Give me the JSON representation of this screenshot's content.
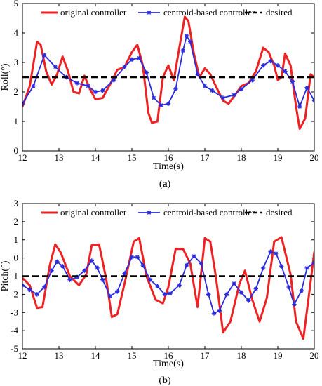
{
  "chart_data": [
    {
      "type": "line",
      "panel_label_open": "(",
      "panel_label_letter": "a",
      "panel_label_close": ")",
      "xlabel": "Time(s)",
      "ylabel": "Roll(°)",
      "xlim": [
        12,
        20
      ],
      "ylim": [
        0,
        5
      ],
      "xticks": [
        12,
        13,
        14,
        15,
        16,
        17,
        18,
        19,
        20
      ],
      "yticks": [
        0,
        1,
        2,
        3,
        4,
        5
      ],
      "legend_position": "top",
      "series": [
        {
          "name": "original controller",
          "color": "#ee2222",
          "style": "solid",
          "x": [
            12.0,
            12.2,
            12.4,
            12.5,
            12.65,
            12.8,
            12.95,
            13.1,
            13.25,
            13.4,
            13.55,
            13.7,
            13.85,
            14.0,
            14.2,
            14.4,
            14.6,
            14.8,
            15.0,
            15.15,
            15.3,
            15.45,
            15.55,
            15.7,
            15.85,
            16.0,
            16.15,
            16.3,
            16.45,
            16.55,
            16.7,
            16.85,
            17.0,
            17.15,
            17.3,
            17.5,
            17.65,
            17.8,
            18.0,
            18.2,
            18.4,
            18.6,
            18.75,
            18.9,
            19.0,
            19.1,
            19.2,
            19.35,
            19.5,
            19.6,
            19.75,
            19.9,
            20.0
          ],
          "y": [
            1.5,
            2.2,
            3.7,
            3.6,
            2.7,
            2.25,
            2.6,
            3.2,
            2.7,
            2.0,
            1.95,
            2.55,
            2.1,
            1.75,
            1.8,
            2.25,
            2.75,
            2.85,
            3.35,
            3.6,
            2.9,
            1.3,
            0.95,
            1.0,
            2.5,
            2.9,
            2.4,
            3.5,
            4.55,
            4.4,
            3.3,
            2.5,
            2.8,
            2.6,
            2.2,
            1.7,
            1.6,
            1.85,
            2.2,
            2.3,
            2.7,
            3.5,
            3.35,
            2.9,
            2.4,
            2.5,
            3.3,
            2.9,
            1.5,
            0.75,
            1.1,
            2.6,
            2.5
          ]
        },
        {
          "name": "centroid-based controller",
          "color": "#2b2bde",
          "style": "solid-star",
          "x": [
            12.0,
            12.3,
            12.6,
            12.9,
            13.2,
            13.5,
            13.8,
            14.0,
            14.2,
            14.5,
            14.8,
            15.0,
            15.2,
            15.4,
            15.6,
            15.8,
            16.0,
            16.2,
            16.4,
            16.5,
            16.6,
            16.8,
            17.0,
            17.2,
            17.5,
            17.8,
            18.0,
            18.3,
            18.6,
            18.8,
            19.0,
            19.2,
            19.4,
            19.6,
            19.8,
            20.0
          ],
          "y": [
            1.6,
            2.2,
            3.25,
            2.85,
            2.5,
            2.3,
            2.2,
            2.0,
            2.05,
            2.4,
            2.85,
            3.1,
            3.15,
            2.65,
            1.8,
            1.55,
            1.6,
            2.1,
            3.4,
            3.9,
            3.7,
            2.6,
            2.2,
            2.05,
            1.8,
            1.9,
            2.1,
            2.4,
            2.9,
            3.05,
            2.9,
            2.7,
            2.35,
            1.5,
            2.15,
            1.7
          ]
        },
        {
          "name": "desired",
          "color": "#000000",
          "style": "dashed",
          "x": [
            12,
            20
          ],
          "y": [
            2.5,
            2.5
          ]
        }
      ]
    },
    {
      "type": "line",
      "panel_label_open": "(",
      "panel_label_letter": "b",
      "panel_label_close": ")",
      "xlabel": "Time(s)",
      "ylabel": "Pitch(°)",
      "xlim": [
        12,
        20
      ],
      "ylim": [
        -5,
        3
      ],
      "xticks": [
        12,
        13,
        14,
        15,
        16,
        17,
        18,
        19,
        20
      ],
      "yticks": [
        -5,
        -4,
        -3,
        -2,
        -1,
        0,
        1,
        2,
        3
      ],
      "legend_position": "top",
      "series": [
        {
          "name": "original controller",
          "color": "#ee2222",
          "style": "solid",
          "x": [
            12.0,
            12.2,
            12.4,
            12.55,
            12.75,
            12.9,
            13.05,
            13.3,
            13.55,
            13.75,
            13.9,
            14.1,
            14.3,
            14.45,
            14.6,
            14.8,
            15.05,
            15.2,
            15.4,
            15.65,
            15.85,
            16.0,
            16.2,
            16.4,
            16.6,
            16.8,
            17.0,
            17.15,
            17.3,
            17.5,
            17.7,
            17.95,
            18.1,
            18.3,
            18.5,
            18.7,
            18.9,
            19.1,
            19.35,
            19.5,
            19.7,
            19.9,
            20.0
          ],
          "y": [
            -1.1,
            -1.5,
            -2.75,
            -2.7,
            -0.4,
            0.75,
            0.3,
            -1.0,
            -1.5,
            -0.9,
            0.7,
            0.75,
            -1.2,
            -3.25,
            -3.1,
            -1.4,
            0.9,
            1.1,
            -1.0,
            -2.3,
            -2.5,
            -1.6,
            0.5,
            0.5,
            -0.3,
            -2.7,
            1.1,
            0.9,
            -1.0,
            -4.1,
            -3.5,
            -1.4,
            -0.7,
            -2.3,
            -3.5,
            -2.2,
            0.9,
            1.15,
            -0.9,
            -3.5,
            -4.45,
            -1.3,
            0.35
          ]
        },
        {
          "name": "centroid-based controller",
          "color": "#2b2bde",
          "style": "solid-star",
          "x": [
            12.0,
            12.2,
            12.4,
            12.6,
            12.8,
            12.95,
            13.1,
            13.3,
            13.5,
            13.7,
            13.9,
            14.05,
            14.2,
            14.4,
            14.6,
            14.8,
            15.0,
            15.15,
            15.3,
            15.5,
            15.7,
            15.9,
            16.05,
            16.3,
            16.5,
            16.7,
            16.9,
            17.1,
            17.25,
            17.4,
            17.6,
            17.8,
            18.0,
            18.2,
            18.4,
            18.6,
            18.8,
            18.95,
            19.1,
            19.3,
            19.45,
            19.65,
            19.8,
            20.0
          ],
          "y": [
            -1.5,
            -1.75,
            -2.0,
            -1.6,
            -0.7,
            -0.2,
            -0.45,
            -1.2,
            -1.05,
            -0.7,
            -0.15,
            -0.55,
            -1.2,
            -2.1,
            -1.85,
            -0.85,
            0.05,
            0.05,
            -0.4,
            -1.2,
            -1.55,
            -2.0,
            -1.95,
            -1.5,
            -0.4,
            0.1,
            -0.3,
            -2.0,
            -3.05,
            -2.9,
            -2.0,
            -1.4,
            -1.9,
            -2.35,
            -1.7,
            -0.55,
            0.35,
            0.25,
            -0.45,
            -1.6,
            -2.55,
            -1.8,
            -0.55,
            -0.25
          ]
        },
        {
          "name": "desired",
          "color": "#000000",
          "style": "dashed",
          "x": [
            12,
            20
          ],
          "y": [
            -1,
            -1
          ]
        }
      ]
    }
  ]
}
